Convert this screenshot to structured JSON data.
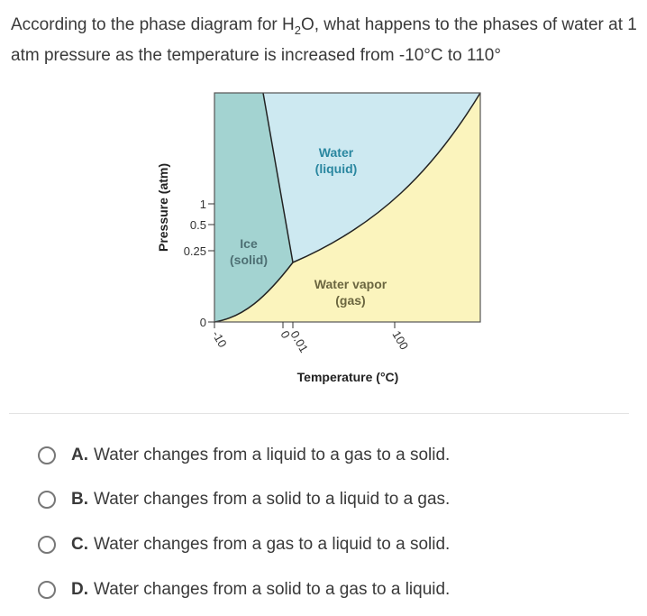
{
  "question": {
    "part1": "According to the phase diagram for H",
    "sub": "2",
    "part2": "O, what happens to the phases of water at 1 atm pressure as the temperature is increased from -10°C to 110°"
  },
  "diagram": {
    "xlabel": "Temperature (°C)",
    "ylabel": "Pressure (atm)",
    "x_ticks": [
      "-10",
      "0",
      "0.01",
      "100"
    ],
    "y_ticks": [
      "0",
      "0.25",
      "0.5",
      "1"
    ],
    "regions": [
      {
        "label1": "Ice",
        "label2": "(solid)",
        "color": "#a3d3d1",
        "text_color": "#4d6f73"
      },
      {
        "label1": "Water",
        "label2": "(liquid)",
        "color": "#cde9f1",
        "text_color": "#2a87a0"
      },
      {
        "label1": "Water vapor",
        "label2": "(gas)",
        "color": "#fbf4bd",
        "text_color": "#6b6640"
      }
    ]
  },
  "options": [
    {
      "letter": "A.",
      "text": "Water changes from a liquid to a gas to a solid."
    },
    {
      "letter": "B.",
      "text": "Water changes from a solid to a liquid to a gas."
    },
    {
      "letter": "C.",
      "text": "Water changes from a gas to a liquid to a solid."
    },
    {
      "letter": "D.",
      "text": "Water changes from a solid to a gas to a liquid."
    }
  ]
}
